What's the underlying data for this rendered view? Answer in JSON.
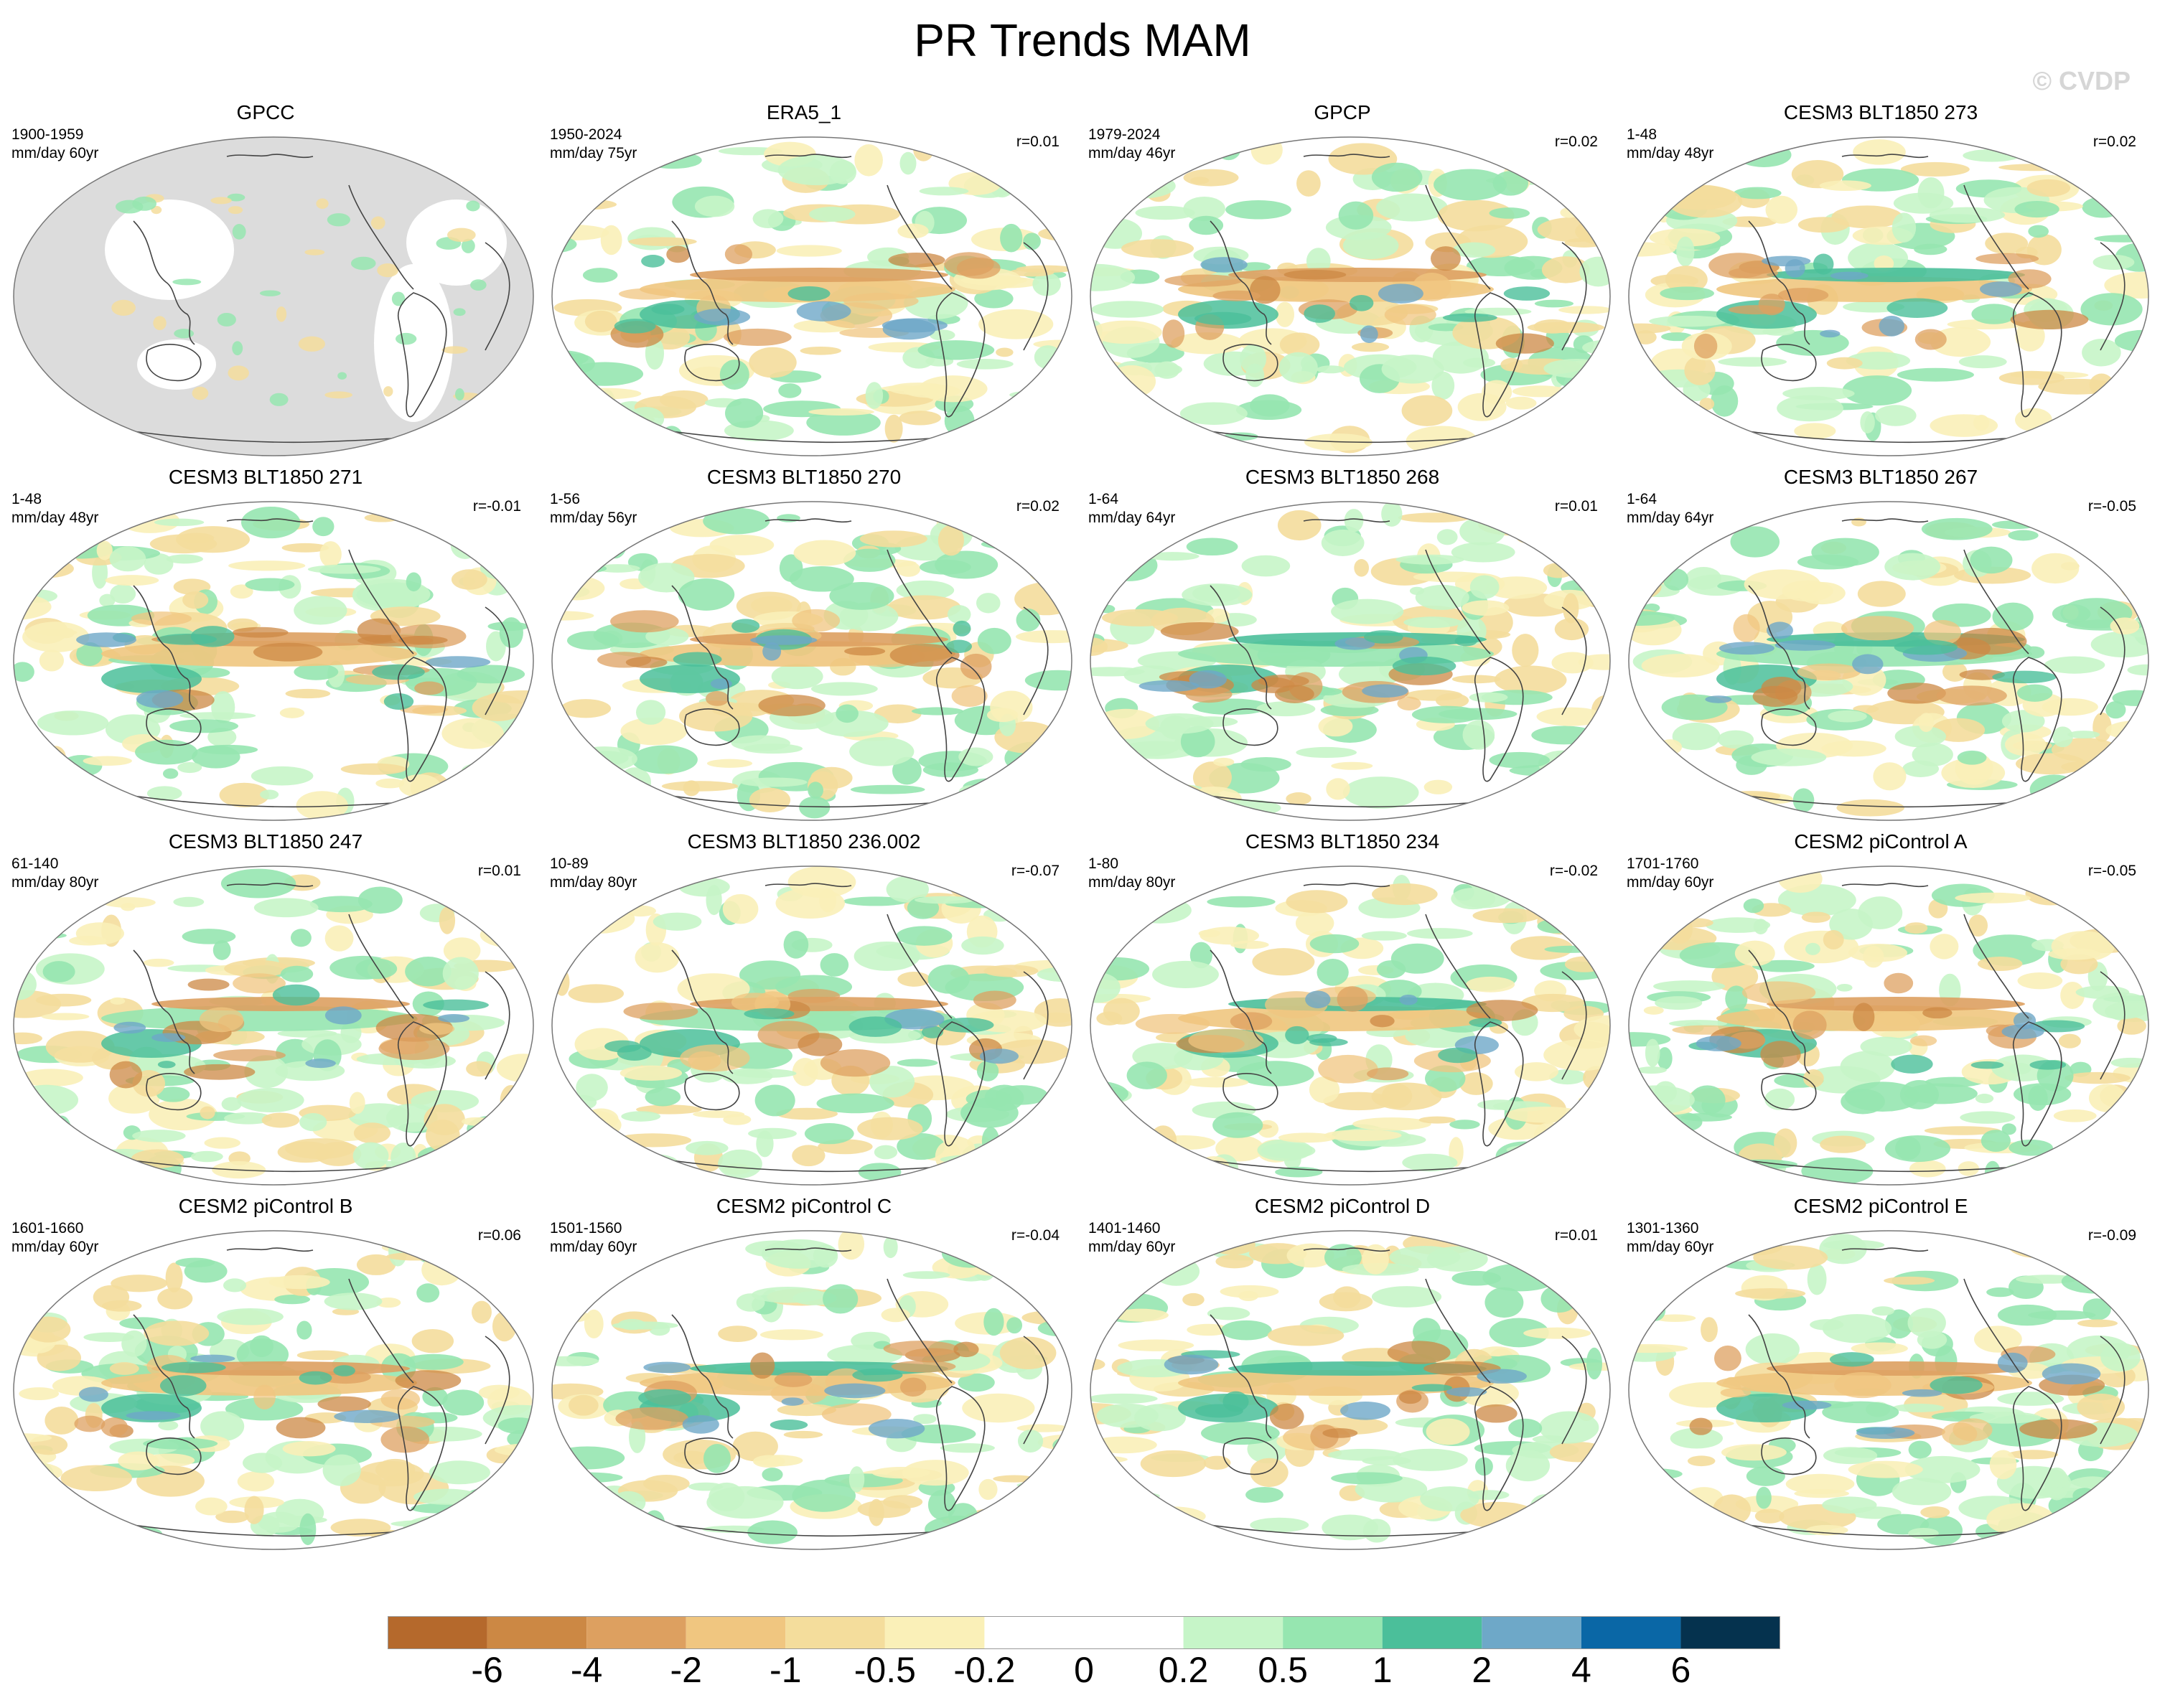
{
  "title": "PR Trends MAM",
  "watermark": "© CVDP",
  "panels": [
    {
      "title": "GPCC",
      "period": "1900-1959",
      "units": "mm/day 60yr",
      "corr": "",
      "sparse": true
    },
    {
      "title": "ERA5_1",
      "period": "1950-2024",
      "units": "mm/day 75yr",
      "corr": "r=0.01"
    },
    {
      "title": "GPCP",
      "period": "1979-2024",
      "units": "mm/day 46yr",
      "corr": "r=0.02"
    },
    {
      "title": "CESM3 BLT1850 273",
      "period": "1-48",
      "units": "mm/day 48yr",
      "corr": "r=0.02"
    },
    {
      "title": "CESM3 BLT1850 271",
      "period": "1-48",
      "units": "mm/day 48yr",
      "corr": "r=-0.01"
    },
    {
      "title": "CESM3 BLT1850 270",
      "period": "1-56",
      "units": "mm/day 56yr",
      "corr": "r=0.02"
    },
    {
      "title": "CESM3 BLT1850 268",
      "period": "1-64",
      "units": "mm/day 64yr",
      "corr": "r=0.01"
    },
    {
      "title": "CESM3 BLT1850 267",
      "period": "1-64",
      "units": "mm/day 64yr",
      "corr": "r=-0.05"
    },
    {
      "title": "CESM3 BLT1850 247",
      "period": "61-140",
      "units": "mm/day 80yr",
      "corr": "r=0.01"
    },
    {
      "title": "CESM3 BLT1850 236.002",
      "period": "10-89",
      "units": "mm/day 80yr",
      "corr": "r=-0.07"
    },
    {
      "title": "CESM3 BLT1850 234",
      "period": "1-80",
      "units": "mm/day 80yr",
      "corr": "r=-0.02"
    },
    {
      "title": "CESM2 piControl A",
      "period": "1701-1760",
      "units": "mm/day 60yr",
      "corr": "r=-0.05"
    },
    {
      "title": "CESM2 piControl B",
      "period": "1601-1660",
      "units": "mm/day 60yr",
      "corr": "r=0.06"
    },
    {
      "title": "CESM2 piControl C",
      "period": "1501-1560",
      "units": "mm/day 60yr",
      "corr": "r=-0.04"
    },
    {
      "title": "CESM2 piControl D",
      "period": "1401-1460",
      "units": "mm/day 60yr",
      "corr": "r=0.01"
    },
    {
      "title": "CESM2 piControl E",
      "period": "1301-1360",
      "units": "mm/day 60yr",
      "corr": "r=-0.09"
    }
  ],
  "colorbar": {
    "labels": [
      "-6",
      "-4",
      "-2",
      "-1",
      "-0.5",
      "-0.2",
      "0",
      "0.2",
      "0.5",
      "1",
      "2",
      "4",
      "6"
    ],
    "colors": [
      "#b5692c",
      "#cc8844",
      "#dda060",
      "#f0c680",
      "#f4dd9c",
      "#faf0b8",
      "#ffffff",
      "#ffffff",
      "#c6f5c8",
      "#96e6b0",
      "#4bbf9a",
      "#6ea8c8",
      "#0a67a6",
      "#05324e"
    ]
  }
}
